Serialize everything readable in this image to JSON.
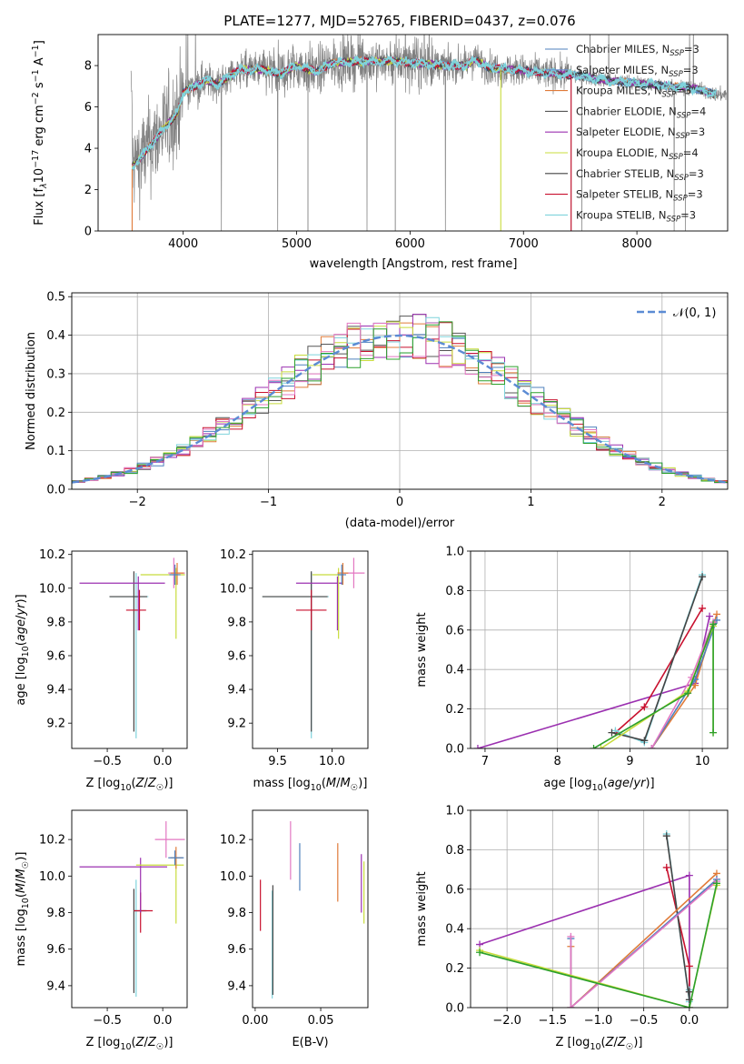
{
  "title": "PLATE=1277, MJD=52765, FIBERID=0437, z=0.076",
  "colors": {
    "chabrier_miles": "#4f81bd",
    "salpeter_miles": "#6a8fd0",
    "kroupa_miles": "#e07b39",
    "chabrier_elodie": "#555555",
    "salpeter_elodie": "#9b30b0",
    "kroupa_elodie": "#c8dc3c",
    "chabrier_stelib": "#444444",
    "salpeter_stelib": "#c8102e",
    "kroupa_stelib": "#7fd3dc",
    "pink": "#e377c2",
    "green": "#2ca02c",
    "teal": "#17becf",
    "spectrum": "#808080",
    "gaussian": "#5b8bd4"
  },
  "chart_data": [
    {
      "id": "spectrum",
      "type": "line",
      "title": "PLATE=1277, MJD=52765, FIBERID=0437, z=0.076",
      "xlabel": "wavelength [Angstrom, rest frame]",
      "ylabel": "Flux [f_λ 10^-17 erg cm^-2 s^-1 A^-1]",
      "xlim": [
        3250,
        8800
      ],
      "ylim": [
        0,
        9.5
      ],
      "xticks": [
        4000,
        5000,
        6000,
        7000,
        8000
      ],
      "yticks": [
        0,
        2,
        4,
        6,
        8
      ],
      "legend_position": "right",
      "legend": [
        {
          "base": "Chabrier MILES, N",
          "sub": "SSP",
          "tail": "=3"
        },
        {
          "base": "Salpeter MILES, N",
          "sub": "SSP",
          "tail": "=3"
        },
        {
          "base": "Kroupa MILES, N",
          "sub": "SSP",
          "tail": "=3"
        },
        {
          "base": "Chabrier ELODIE, N",
          "sub": "SSP",
          "tail": "=4"
        },
        {
          "base": "Salpeter ELODIE, N",
          "sub": "SSP",
          "tail": "=3"
        },
        {
          "base": "Kroupa ELODIE, N",
          "sub": "SSP",
          "tail": "=4"
        },
        {
          "base": "Chabrier STELIB, N",
          "sub": "SSP",
          "tail": "=3"
        },
        {
          "base": "Salpeter STELIB, N",
          "sub": "SSP",
          "tail": "=3"
        },
        {
          "base": "Kroupa STELIB, N",
          "sub": "SSP",
          "tail": "=3"
        }
      ],
      "model_curve": {
        "x": [
          3550,
          3650,
          3750,
          3850,
          3950,
          4000,
          4100,
          4200,
          4300,
          4500,
          4700,
          4861,
          5000,
          5175,
          5300,
          5500,
          5700,
          5900,
          6100,
          6300,
          6500,
          6563,
          6700,
          6900,
          7100,
          7300,
          7500,
          7700,
          7900,
          8100,
          8300,
          8500,
          8700
        ],
        "y": [
          3.1,
          3.7,
          4.4,
          5.1,
          5.7,
          6.7,
          7.0,
          7.3,
          7.1,
          7.8,
          7.8,
          7.6,
          8.0,
          7.7,
          8.1,
          8.2,
          8.2,
          8.2,
          8.1,
          8.0,
          8.0,
          8.3,
          7.9,
          7.8,
          7.7,
          7.6,
          7.5,
          7.3,
          7.2,
          7.1,
          7.0,
          6.9,
          6.6
        ]
      },
      "spectrum_noise_growth": "noise increases strongly blueward of 4000 A and between 5000-6000 A"
    },
    {
      "id": "residuals",
      "type": "histogram",
      "xlabel": "(data-model)/error",
      "ylabel": "Normed distribution",
      "xlim": [
        -2.5,
        2.5
      ],
      "ylim": [
        0,
        0.51
      ],
      "xticks": [
        -2,
        -1,
        0,
        1,
        2
      ],
      "yticks": [
        0.0,
        0.1,
        0.2,
        0.3,
        0.4,
        0.5
      ],
      "legend": "𝒩(0, 1)",
      "legend_position": "upper right",
      "bin_width": 0.1,
      "grid": true
    },
    {
      "id": "age_vs_z",
      "type": "errorbar",
      "xlabel": "Z [log10(Z/Z☉)]",
      "ylabel": "age [log10(age/yr)]",
      "xlim": [
        -0.82,
        0.22
      ],
      "ylim": [
        9.05,
        10.22
      ],
      "xticks": [
        -0.5,
        0.0
      ],
      "yticks": [
        9.2,
        9.4,
        9.6,
        9.8,
        10.0,
        10.2
      ],
      "points": [
        {
          "c": "kroupa_stelib",
          "x": -0.24,
          "xerr": [
            0.24,
            0.11
          ],
          "y": 9.95,
          "yerr": [
            0.84,
            0.14
          ]
        },
        {
          "c": "chabrier_stelib",
          "x": -0.26,
          "xerr": [
            0.22,
            0.12
          ],
          "y": 9.95,
          "yerr": [
            0.8,
            0.15
          ]
        },
        {
          "c": "salpeter_stelib",
          "x": -0.21,
          "xerr": [
            0.12,
            0.06
          ],
          "y": 9.87,
          "yerr": [
            0.12,
            0.12
          ]
        },
        {
          "c": "salpeter_elodie",
          "x": -0.22,
          "xerr": [
            0.53,
            0.24
          ],
          "y": 10.03,
          "yerr": [
            0.28,
            0.04
          ]
        },
        {
          "c": "kroupa_elodie",
          "x": 0.12,
          "xerr": [
            0.32,
            0.08
          ],
          "y": 10.08,
          "yerr": [
            0.38,
            0.04
          ]
        },
        {
          "c": "pink",
          "x": 0.1,
          "xerr": [
            0.05,
            0.1
          ],
          "y": 10.09,
          "yerr": [
            0.09,
            0.09
          ]
        },
        {
          "c": "kroupa_miles",
          "x": 0.13,
          "xerr": [
            0.06,
            0.06
          ],
          "y": 10.09,
          "yerr": [
            0.07,
            0.06
          ]
        },
        {
          "c": "chabrier_miles",
          "x": 0.11,
          "xerr": [
            0.05,
            0.05
          ],
          "y": 10.08,
          "yerr": [
            0.06,
            0.06
          ]
        }
      ]
    },
    {
      "id": "age_vs_mass",
      "type": "errorbar",
      "xlabel": "mass [log10(M/M☉)]",
      "ylabel": "",
      "xlim": [
        9.27,
        10.33
      ],
      "ylim": [
        9.05,
        10.22
      ],
      "xticks": [
        9.5,
        10.0
      ],
      "yticks": [
        9.2,
        9.4,
        9.6,
        9.8,
        10.0,
        10.2
      ],
      "points": [
        {
          "c": "kroupa_stelib",
          "x": 9.81,
          "xerr": [
            0.45,
            0.16
          ],
          "y": 9.95,
          "yerr": [
            0.84,
            0.14
          ]
        },
        {
          "c": "chabrier_stelib",
          "x": 9.81,
          "xerr": [
            0.45,
            0.15
          ],
          "y": 9.95,
          "yerr": [
            0.8,
            0.15
          ]
        },
        {
          "c": "salpeter_stelib",
          "x": 9.81,
          "xerr": [
            0.14,
            0.14
          ],
          "y": 9.87,
          "yerr": [
            0.12,
            0.12
          ]
        },
        {
          "c": "salpeter_elodie",
          "x": 10.05,
          "xerr": [
            0.38,
            0.05
          ],
          "y": 10.03,
          "yerr": [
            0.28,
            0.04
          ]
        },
        {
          "c": "kroupa_elodie",
          "x": 10.06,
          "xerr": [
            0.24,
            0.04
          ],
          "y": 10.08,
          "yerr": [
            0.38,
            0.04
          ]
        },
        {
          "c": "pink",
          "x": 10.2,
          "xerr": [
            0.1,
            0.1
          ],
          "y": 10.09,
          "yerr": [
            0.09,
            0.09
          ]
        },
        {
          "c": "kroupa_miles",
          "x": 10.1,
          "xerr": [
            0.05,
            0.05
          ],
          "y": 10.09,
          "yerr": [
            0.07,
            0.06
          ]
        },
        {
          "c": "chabrier_miles",
          "x": 10.09,
          "xerr": [
            0.04,
            0.04
          ],
          "y": 10.08,
          "yerr": [
            0.06,
            0.06
          ]
        }
      ]
    },
    {
      "id": "weight_vs_age",
      "type": "line",
      "xlabel": "age [log10(age/yr)]",
      "ylabel": "mass weight",
      "xlim": [
        6.8,
        10.35
      ],
      "ylim": [
        0,
        1.0
      ],
      "xticks": [
        7,
        8,
        9,
        10
      ],
      "yticks": [
        0.0,
        0.2,
        0.4,
        0.6,
        0.8,
        1.0
      ],
      "grid": true,
      "series": [
        {
          "c": "salpeter_elodie",
          "x": [
            6.9,
            9.9,
            10.1
          ],
          "y": [
            0.0,
            0.33,
            0.67
          ]
        },
        {
          "c": "salpeter_stelib",
          "x": [
            8.8,
            9.2,
            10.0
          ],
          "y": [
            0.08,
            0.21,
            0.71
          ]
        },
        {
          "c": "kroupa_stelib",
          "x": [
            8.8,
            9.2,
            10.0
          ],
          "y": [
            0.09,
            0.03,
            0.88
          ]
        },
        {
          "c": "chabrier_stelib",
          "x": [
            8.75,
            9.2,
            10.0
          ],
          "y": [
            0.08,
            0.04,
            0.87
          ]
        },
        {
          "c": "kroupa_miles",
          "x": [
            9.3,
            9.9,
            10.2
          ],
          "y": [
            0.0,
            0.32,
            0.68
          ]
        },
        {
          "c": "chabrier_miles",
          "x": [
            9.3,
            9.9,
            10.2
          ],
          "y": [
            0.0,
            0.35,
            0.65
          ]
        },
        {
          "c": "pink",
          "x": [
            9.3,
            9.85,
            10.15
          ],
          "y": [
            0.0,
            0.36,
            0.64
          ]
        },
        {
          "c": "kroupa_elodie",
          "x": [
            8.6,
            9.8,
            10.15,
            10.15
          ],
          "y": [
            0.0,
            0.29,
            0.62,
            0.08
          ]
        },
        {
          "c": "green",
          "x": [
            8.5,
            9.8,
            10.15,
            10.15
          ],
          "y": [
            0.0,
            0.28,
            0.63,
            0.08
          ]
        }
      ]
    },
    {
      "id": "mass_vs_z",
      "type": "errorbar",
      "xlabel": "Z [log10(Z/Z☉)]",
      "ylabel": "mass [log10(M/M☉)]",
      "xlim": [
        -0.82,
        0.22
      ],
      "ylim": [
        9.28,
        10.36
      ],
      "xticks": [
        -0.5,
        0.0
      ],
      "yticks": [
        9.4,
        9.6,
        9.8,
        10.0,
        10.2
      ],
      "points": [
        {
          "c": "kroupa_stelib",
          "x": -0.24,
          "xerr": [
            0.0,
            0.1
          ],
          "y": 9.81,
          "yerr": [
            0.47,
            0.17
          ]
        },
        {
          "c": "chabrier_stelib",
          "x": -0.26,
          "xerr": [
            0.0,
            0.11
          ],
          "y": 9.81,
          "yerr": [
            0.45,
            0.12
          ]
        },
        {
          "c": "salpeter_stelib",
          "x": -0.2,
          "xerr": [
            0.06,
            0.11
          ],
          "y": 9.81,
          "yerr": [
            0.12,
            0.1
          ]
        },
        {
          "c": "salpeter_elodie",
          "x": -0.2,
          "xerr": [
            0.55,
            0.24
          ],
          "y": 10.05,
          "yerr": [
            0.25,
            0.05
          ]
        },
        {
          "c": "kroupa_elodie",
          "x": 0.12,
          "xerr": [
            0.36,
            0.07
          ],
          "y": 10.06,
          "yerr": [
            0.32,
            0.04
          ]
        },
        {
          "c": "pink",
          "x": 0.03,
          "xerr": [
            0.1,
            0.17
          ],
          "y": 10.2,
          "yerr": [
            0.1,
            0.1
          ]
        },
        {
          "c": "kroupa_miles",
          "x": 0.12,
          "xerr": [
            0.05,
            0.06
          ],
          "y": 10.1,
          "yerr": [
            0.06,
            0.06
          ]
        },
        {
          "c": "chabrier_miles",
          "x": 0.11,
          "xerr": [
            0.06,
            0.08
          ],
          "y": 10.1,
          "yerr": [
            0.04,
            0.04
          ]
        }
      ]
    },
    {
      "id": "mass_vs_ebv",
      "type": "errorbar",
      "xlabel": "E(B-V)",
      "ylabel": "",
      "xlim": [
        -0.002,
        0.086
      ],
      "ylim": [
        9.28,
        10.36
      ],
      "xticks": [
        0.0,
        0.05
      ],
      "xticklabels": [
        "0.00",
        "0.05"
      ],
      "yticks": [
        9.4,
        9.6,
        9.8,
        10.0,
        10.2
      ],
      "points": [
        {
          "c": "salpeter_stelib",
          "x": 0.004,
          "y": 9.84,
          "yerr": [
            0.14,
            0.14
          ]
        },
        {
          "c": "kroupa_stelib",
          "x": 0.013,
          "y": 9.6,
          "yerr": [
            0.27,
            0.32
          ]
        },
        {
          "c": "chabrier_stelib",
          "x": 0.0135,
          "y": 9.65,
          "yerr": [
            0.3,
            0.3
          ]
        },
        {
          "c": "pink",
          "x": 0.027,
          "y": 10.14,
          "yerr": [
            0.16,
            0.16
          ]
        },
        {
          "c": "chabrier_miles",
          "x": 0.034,
          "y": 10.05,
          "yerr": [
            0.13,
            0.13
          ]
        },
        {
          "c": "kroupa_miles",
          "x": 0.063,
          "y": 10.02,
          "yerr": [
            0.16,
            0.16
          ]
        },
        {
          "c": "salpeter_elodie",
          "x": 0.081,
          "y": 9.96,
          "yerr": [
            0.16,
            0.16
          ]
        },
        {
          "c": "kroupa_elodie",
          "x": 0.083,
          "y": 9.91,
          "yerr": [
            0.17,
            0.17
          ]
        }
      ]
    },
    {
      "id": "weight_vs_z",
      "type": "line",
      "xlabel": "Z [log10(Z/Z☉)]",
      "ylabel": "mass weight",
      "xlim": [
        -2.4,
        0.42
      ],
      "ylim": [
        0,
        1.0
      ],
      "xticks": [
        -2.0,
        -1.5,
        -1.0,
        -0.5,
        0.0
      ],
      "yticks": [
        0.0,
        0.2,
        0.4,
        0.6,
        0.8,
        1.0
      ],
      "grid": true,
      "series": [
        {
          "c": "salpeter_elodie",
          "x": [
            -2.3,
            0.0,
            0.0
          ],
          "y": [
            0.32,
            0.67,
            0.0
          ]
        },
        {
          "c": "salpeter_stelib",
          "x": [
            -0.25,
            0.0,
            0.0
          ],
          "y": [
            0.71,
            0.21,
            0.08
          ]
        },
        {
          "c": "kroupa_stelib",
          "x": [
            -0.25,
            0.0,
            0.0
          ],
          "y": [
            0.88,
            0.03,
            0.09
          ]
        },
        {
          "c": "chabrier_stelib",
          "x": [
            -0.25,
            0.0,
            0.0
          ],
          "y": [
            0.87,
            0.04,
            0.08
          ]
        },
        {
          "c": "kroupa_miles",
          "x": [
            -1.3,
            -1.3,
            0.3
          ],
          "y": [
            0.31,
            0.0,
            0.68
          ]
        },
        {
          "c": "chabrier_miles",
          "x": [
            -1.3,
            -1.3,
            0.3
          ],
          "y": [
            0.35,
            0.0,
            0.65
          ]
        },
        {
          "c": "pink",
          "x": [
            -1.3,
            -1.3,
            0.3
          ],
          "y": [
            0.36,
            0.0,
            0.64
          ]
        },
        {
          "c": "kroupa_elodie",
          "x": [
            -2.3,
            0.0,
            0.3
          ],
          "y": [
            0.29,
            0.0,
            0.62
          ]
        },
        {
          "c": "green",
          "x": [
            -2.3,
            0.0,
            0.3
          ],
          "y": [
            0.28,
            0.0,
            0.63
          ]
        }
      ]
    }
  ]
}
